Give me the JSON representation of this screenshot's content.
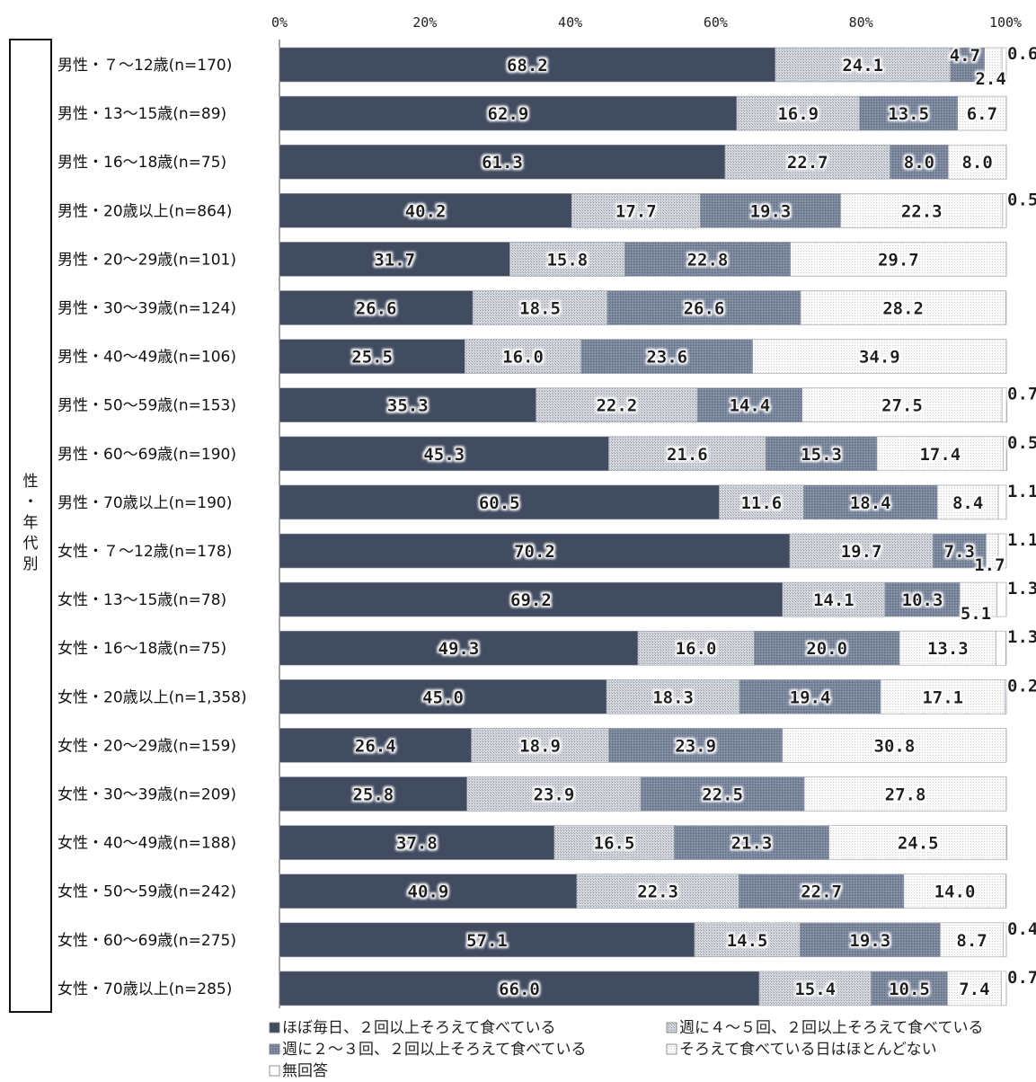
{
  "chart_data": {
    "type": "bar",
    "orientation": "horizontal",
    "stacked": true,
    "group_label": "性・年代別",
    "x_ticks": [
      "0%",
      "20%",
      "40%",
      "60%",
      "80%",
      "100%"
    ],
    "xlim": [
      0,
      100
    ],
    "grid": false,
    "legend_position": "bottom",
    "categories": [
      "男性・７～12歳(n=170)",
      "男性・13～15歳(n=89)",
      "男性・16～18歳(n=75)",
      "男性・20歳以上(n=864)",
      "男性・20～29歳(n=101)",
      "男性・30～39歳(n=124)",
      "男性・40～49歳(n=106)",
      "男性・50～59歳(n=153)",
      "男性・60～69歳(n=190)",
      "男性・70歳以上(n=190)",
      "女性・７～12歳(n=178)",
      "女性・13～15歳(n=78)",
      "女性・16～18歳(n=75)",
      "女性・20歳以上(n=1,358)",
      "女性・20～29歳(n=159)",
      "女性・30～39歳(n=209)",
      "女性・40～49歳(n=188)",
      "女性・50～59歳(n=242)",
      "女性・60～69歳(n=275)",
      "女性・70歳以上(n=285)"
    ],
    "series": [
      {
        "name": "ほぼ毎日、２回以上そろえて食べている",
        "color": "#414c60",
        "values": [
          68.2,
          62.9,
          61.3,
          40.2,
          31.7,
          26.6,
          25.5,
          35.3,
          45.3,
          60.5,
          70.2,
          69.2,
          49.3,
          45.0,
          26.4,
          25.8,
          37.8,
          40.9,
          57.1,
          66.0
        ]
      },
      {
        "name": "週に４～５回、２回以上そろえて食べている",
        "color": "#c4c8cf",
        "values": [
          24.1,
          16.9,
          22.7,
          17.7,
          15.8,
          18.5,
          16.0,
          22.2,
          21.6,
          11.6,
          19.7,
          14.1,
          16.0,
          18.3,
          18.9,
          23.9,
          16.5,
          22.3,
          14.5,
          15.4
        ]
      },
      {
        "name": "週に２～３回、２回以上そろえて食べている",
        "color": "#76829a",
        "values": [
          4.7,
          13.5,
          8.0,
          19.3,
          22.8,
          26.6,
          23.6,
          14.4,
          15.3,
          18.4,
          7.3,
          10.3,
          20.0,
          19.4,
          23.9,
          22.5,
          21.3,
          22.7,
          19.3,
          10.5
        ]
      },
      {
        "name": "そろえて食べている日はほとんどない",
        "color": "#f2f2f2",
        "values": [
          2.4,
          6.7,
          8.0,
          22.3,
          29.7,
          28.2,
          34.9,
          27.5,
          17.4,
          8.4,
          1.7,
          5.1,
          13.3,
          17.1,
          30.8,
          27.8,
          24.5,
          14.0,
          8.7,
          7.4
        ]
      },
      {
        "name": "無回答",
        "color": "#ffffff",
        "values": [
          0.6,
          null,
          null,
          0.5,
          null,
          null,
          null,
          0.7,
          0.5,
          1.1,
          1.1,
          1.3,
          1.3,
          0.2,
          null,
          null,
          null,
          null,
          0.4,
          0.7
        ]
      }
    ],
    "value_labels": [
      [
        "68.2",
        "24.1",
        "4.7",
        "2.4",
        "0.6"
      ],
      [
        "62.9",
        "16.9",
        "13.5",
        "6.7",
        ""
      ],
      [
        "61.3",
        "22.7",
        "8.0",
        "8.0",
        ""
      ],
      [
        "40.2",
        "17.7",
        "19.3",
        "22.3",
        "0.5"
      ],
      [
        "31.7",
        "15.8",
        "22.8",
        "29.7",
        ""
      ],
      [
        "26.6",
        "18.5",
        "26.6",
        "28.2",
        ""
      ],
      [
        "25.5",
        "16.0",
        "23.6",
        "34.9",
        ""
      ],
      [
        "35.3",
        "22.2",
        "14.4",
        "27.5",
        "0.7"
      ],
      [
        "45.3",
        "21.6",
        "15.3",
        "17.4",
        "0.5"
      ],
      [
        "60.5",
        "11.6",
        "18.4",
        "8.4",
        "1.1"
      ],
      [
        "70.2",
        "19.7",
        "7.3",
        "1.7",
        "1.1"
      ],
      [
        "69.2",
        "14.1",
        "10.3",
        "5.1",
        "1.3"
      ],
      [
        "49.3",
        "16.0",
        "20.0",
        "13.3",
        "1.3"
      ],
      [
        "45.0",
        "18.3",
        "19.4",
        "17.1",
        "0.2"
      ],
      [
        "26.4",
        "18.9",
        "23.9",
        "30.8",
        ""
      ],
      [
        "25.8",
        "23.9",
        "22.5",
        "27.8",
        ""
      ],
      [
        "37.8",
        "16.5",
        "21.3",
        "24.5",
        ""
      ],
      [
        "40.9",
        "22.3",
        "22.7",
        "14.0",
        ""
      ],
      [
        "57.1",
        "14.5",
        "19.3",
        "8.7",
        "0.4"
      ],
      [
        "66.0",
        "15.4",
        "10.5",
        "7.4",
        "0.7"
      ]
    ]
  }
}
